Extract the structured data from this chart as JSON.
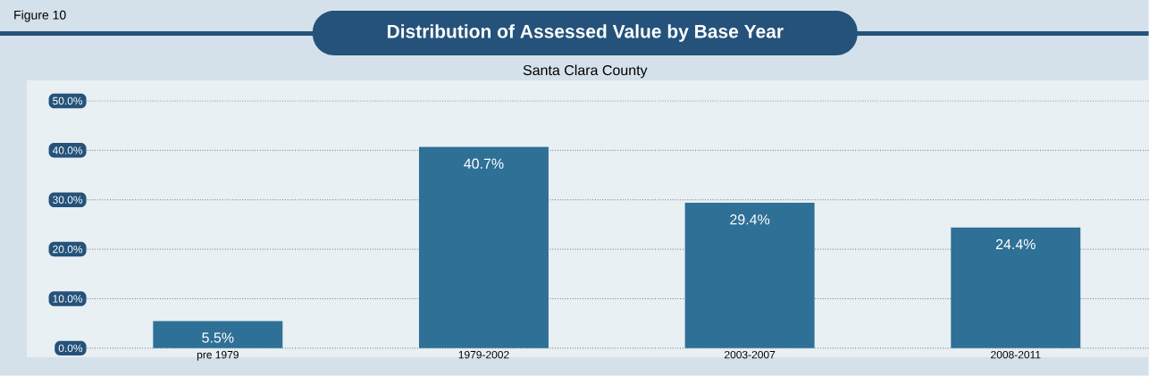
{
  "chart_data": {
    "type": "bar",
    "title": "Distribution of Assessed Value by Base Year",
    "subtitle": "Santa Clara County",
    "annotations": [
      "Figure 10"
    ],
    "categories": [
      "pre 1979",
      "1979-2002",
      "2003-2007",
      "2008-2011"
    ],
    "values": [
      5.5,
      40.7,
      29.4,
      24.4
    ],
    "value_labels": [
      "5.5%",
      "40.7%",
      "29.4%",
      "24.4%"
    ],
    "color": "#2e7096",
    "ylim": [
      0,
      50
    ],
    "yticks": [
      {
        "value": 0,
        "label": "0.0%"
      },
      {
        "value": 10,
        "label": "10.0%"
      },
      {
        "value": 20,
        "label": "20.0%"
      },
      {
        "value": 30,
        "label": "30.0%"
      },
      {
        "value": 40,
        "label": "40.0%"
      },
      {
        "value": 50,
        "label": "50.0%"
      }
    ],
    "grid": "y"
  }
}
